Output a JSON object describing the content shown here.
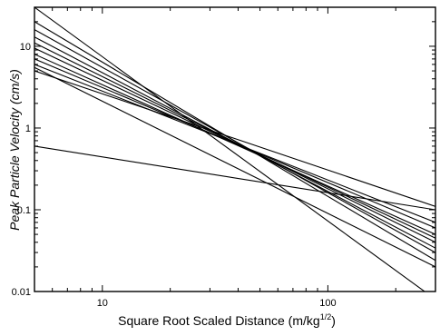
{
  "chart_data": {
    "type": "line",
    "title": "",
    "xlabel": "Square Root Scaled Distance (m/kg",
    "xlabel_sup": "1/2",
    "xlabel_close": ")",
    "ylabel": "Peak Particle Velocity (cm/s)",
    "x_scale": "log",
    "y_scale": "log",
    "xlim": [
      5,
      300
    ],
    "ylim": [
      0.01,
      30
    ],
    "xticks": [
      {
        "value": 10,
        "label": "10"
      },
      {
        "value": 100,
        "label": "100"
      }
    ],
    "yticks": [
      {
        "value": 0.01,
        "label": "0.01"
      },
      {
        "value": 0.1,
        "label": "0.1"
      },
      {
        "value": 1,
        "label": "1"
      },
      {
        "value": 10,
        "label": "10"
      }
    ],
    "grid": false,
    "legend": "none",
    "series": [
      {
        "x": [
          5,
          300
        ],
        "y": [
          30,
          0.008
        ]
      },
      {
        "x": [
          5,
          300
        ],
        "y": [
          20,
          0.024
        ]
      },
      {
        "x": [
          5,
          300
        ],
        "y": [
          16,
          0.03
        ]
      },
      {
        "x": [
          5,
          300
        ],
        "y": [
          13,
          0.034
        ]
      },
      {
        "x": [
          5,
          300
        ],
        "y": [
          11,
          0.04
        ]
      },
      {
        "x": [
          5,
          300
        ],
        "y": [
          9.5,
          0.045
        ]
      },
      {
        "x": [
          5,
          300
        ],
        "y": [
          8,
          0.05
        ]
      },
      {
        "x": [
          5,
          300
        ],
        "y": [
          7,
          0.06
        ]
      },
      {
        "x": [
          5,
          300
        ],
        "y": [
          6,
          0.07
        ]
      },
      {
        "x": [
          5,
          300
        ],
        "y": [
          5,
          0.11
        ]
      },
      {
        "x": [
          5,
          300
        ],
        "y": [
          5.5,
          0.02
        ]
      },
      {
        "x": [
          5,
          300
        ],
        "y": [
          0.6,
          0.1
        ]
      }
    ]
  }
}
